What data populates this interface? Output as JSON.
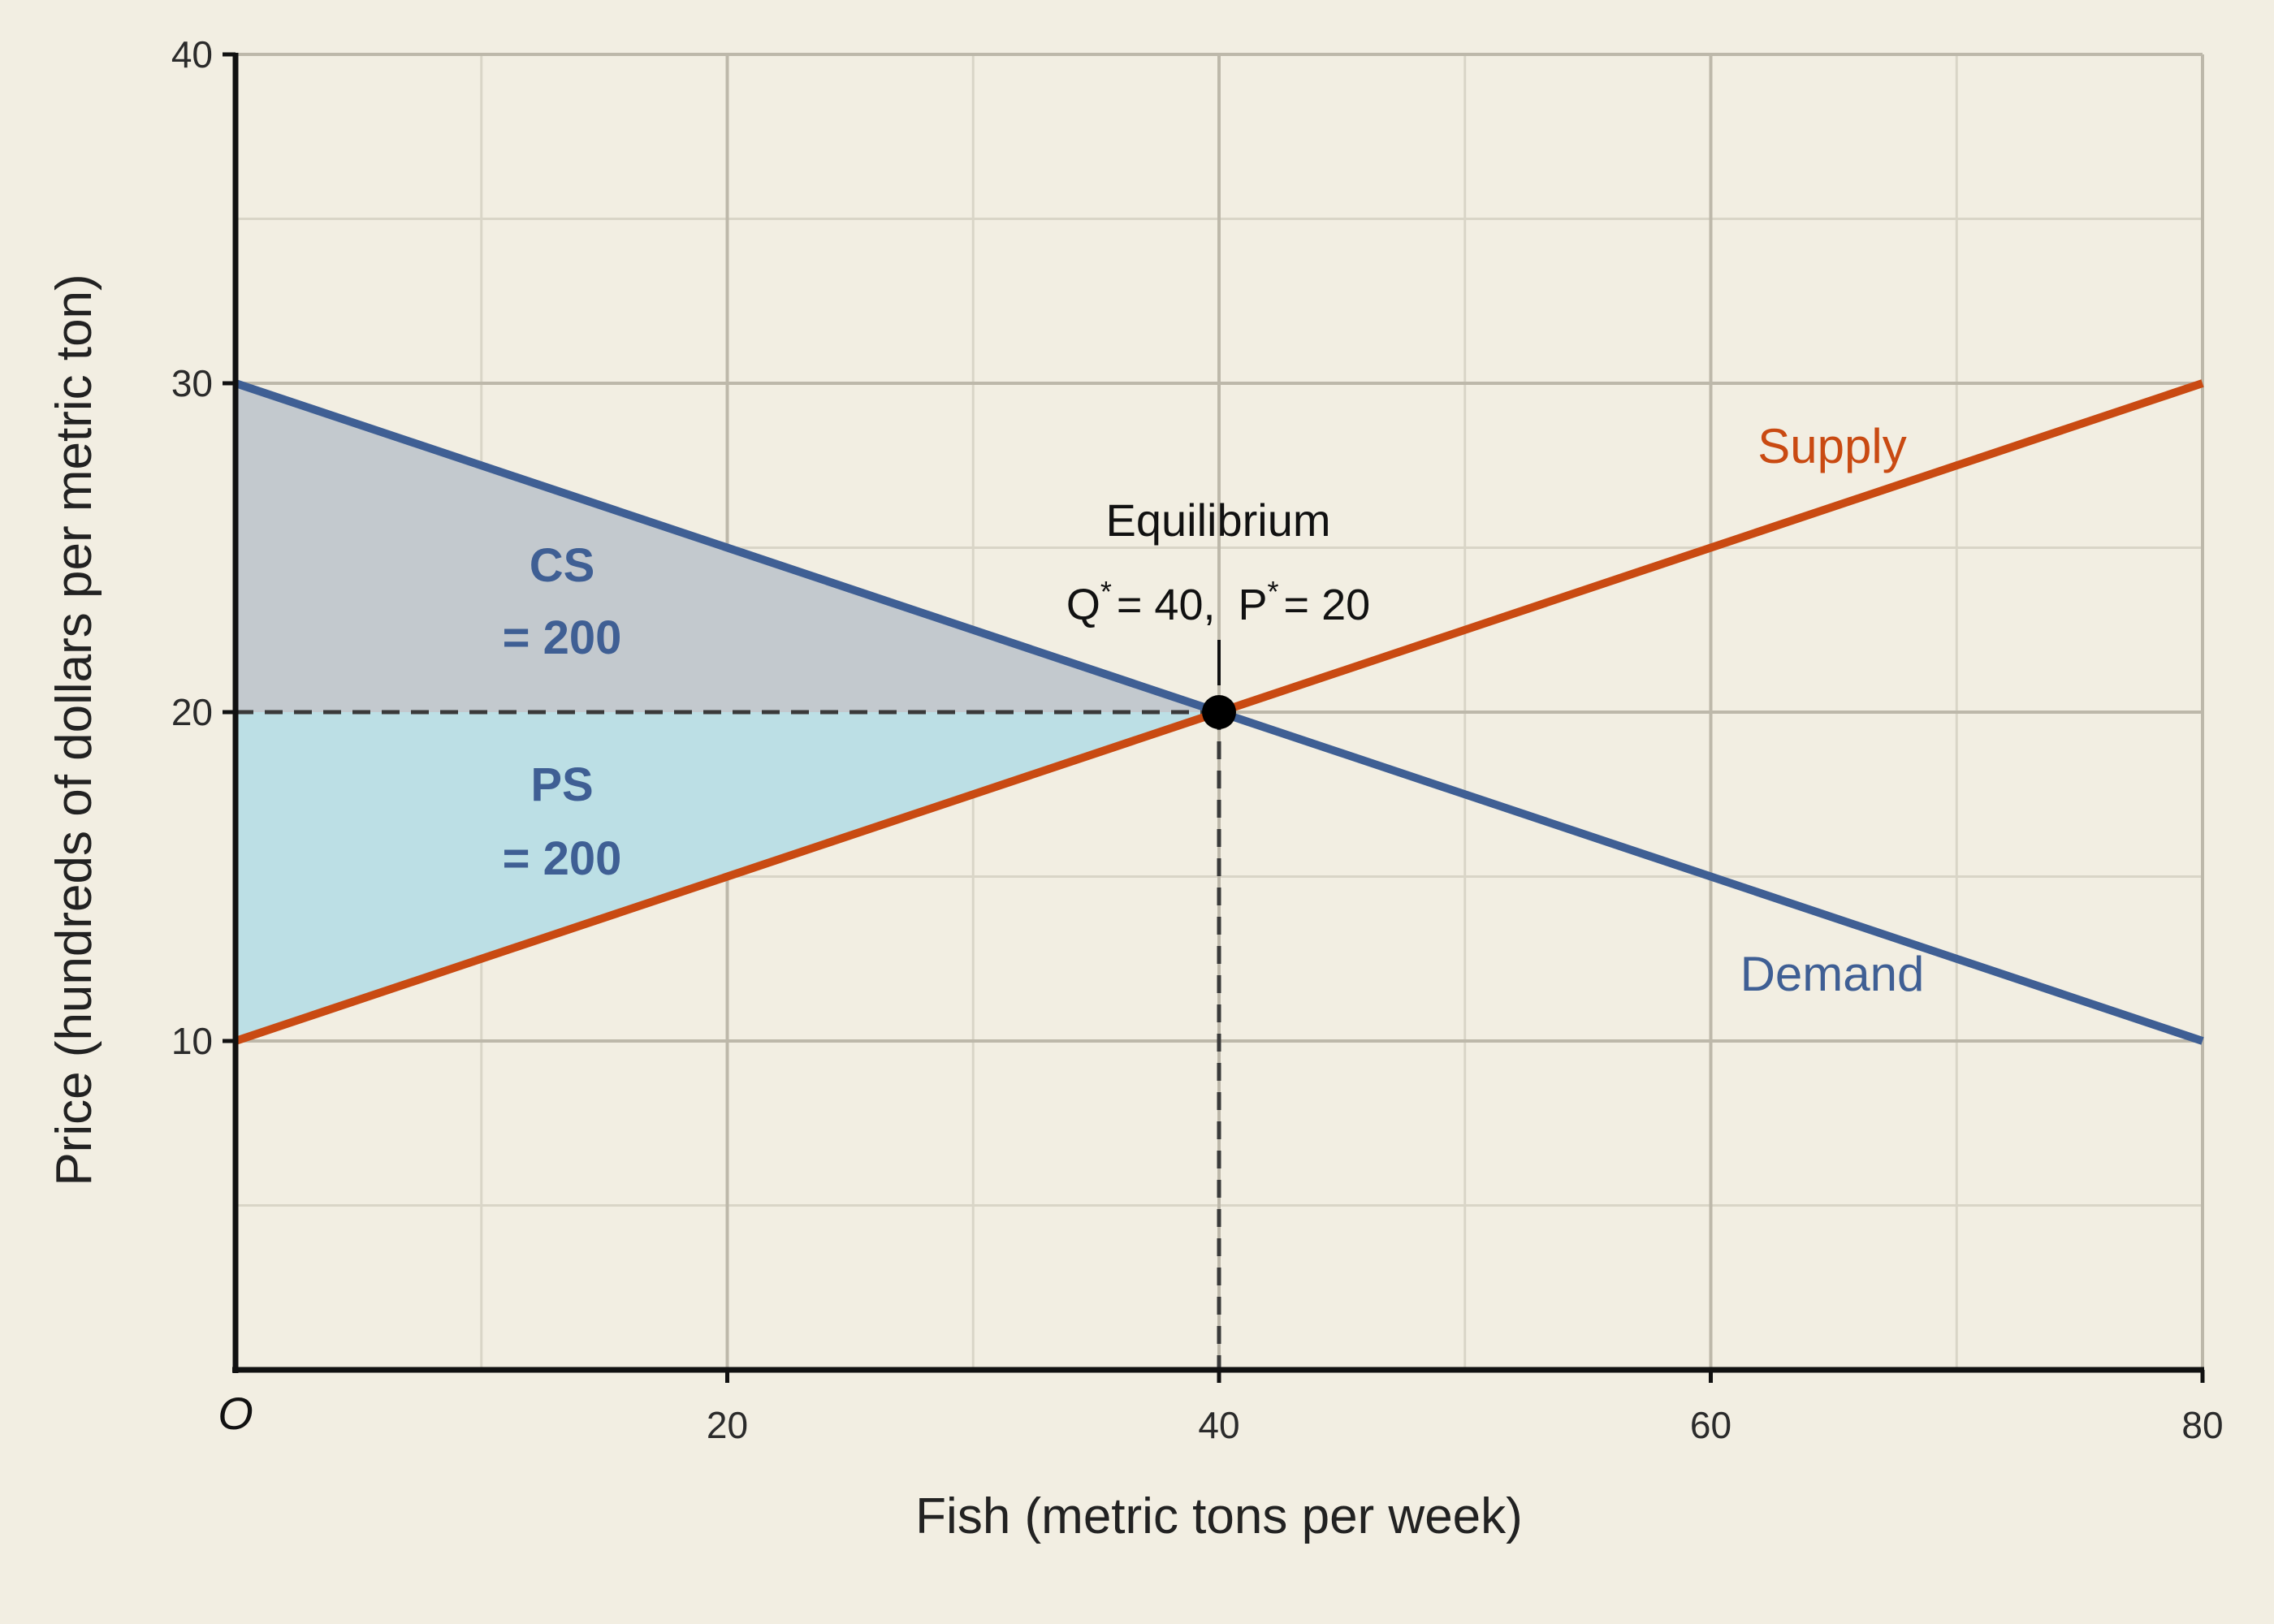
{
  "chart_data": {
    "type": "line",
    "title": "",
    "xlabel": "Fish (metric tons per week)",
    "ylabel": "Price (hundreds of dollars per metric ton)",
    "xlim": [
      0,
      80
    ],
    "ylim": [
      0,
      40
    ],
    "x_major_ticks": [
      20,
      40,
      60,
      80
    ],
    "y_major_ticks": [
      10,
      20,
      30,
      40
    ],
    "x_minor_gridlines": [
      10,
      30,
      50,
      70
    ],
    "y_minor_gridlines": [
      5,
      15,
      25,
      35
    ],
    "origin_label": "O",
    "grid": true,
    "series": [
      {
        "name": "Supply",
        "color": "#c94a12",
        "x": [
          0,
          80
        ],
        "y": [
          10,
          30
        ]
      },
      {
        "name": "Demand",
        "color": "#3f5f94",
        "x": [
          0,
          80
        ],
        "y": [
          30,
          10
        ]
      }
    ],
    "equilibrium": {
      "title": "Equilibrium",
      "q_symbol": "Q",
      "q_value_text": "= 40,",
      "p_symbol": "P",
      "p_value_text": "= 20",
      "star": "*",
      "x": 40,
      "y": 20
    },
    "areas": [
      {
        "line1": "CS",
        "line2": "= 200",
        "color": "#c3c9ce",
        "polygon": [
          [
            0,
            30
          ],
          [
            40,
            20
          ],
          [
            0,
            20
          ]
        ]
      },
      {
        "line1": "PS",
        "line2": "= 200",
        "color": "#bcdfe5",
        "polygon": [
          [
            0,
            20
          ],
          [
            40,
            20
          ],
          [
            0,
            10
          ]
        ]
      }
    ],
    "colors": {
      "background": "#f2eee2",
      "major_grid": "#bdb8aa",
      "minor_grid": "#d9d5c7",
      "axis": "#111111",
      "guide": "#3a3a3a"
    }
  }
}
